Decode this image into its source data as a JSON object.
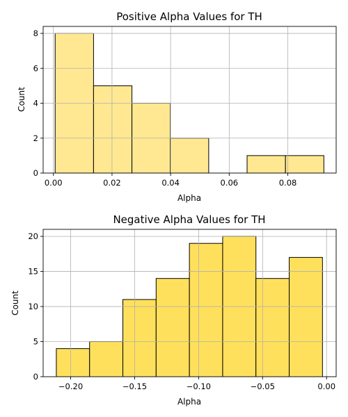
{
  "chart_data": [
    {
      "type": "bar",
      "title": "Positive Alpha Values for TH",
      "xlabel": "Alpha",
      "ylabel": "Count",
      "xlim": [
        -0.0035,
        0.0965
      ],
      "ylim": [
        0,
        8.4
      ],
      "xticks": [
        0.0,
        0.02,
        0.04,
        0.06,
        0.08
      ],
      "xtick_labels": [
        "0.00",
        "0.02",
        "0.04",
        "0.06",
        "0.08"
      ],
      "yticks": [
        0,
        2,
        4,
        6,
        8
      ],
      "ytick_labels": [
        "0",
        "2",
        "4",
        "6",
        "8"
      ],
      "grid": true,
      "color": "#ffe891",
      "bins": [
        {
          "x0": 0.0006,
          "x1": 0.0137,
          "value": 8
        },
        {
          "x0": 0.0137,
          "x1": 0.0268,
          "value": 5
        },
        {
          "x0": 0.0268,
          "x1": 0.0399,
          "value": 4
        },
        {
          "x0": 0.0399,
          "x1": 0.053,
          "value": 2
        },
        {
          "x0": 0.053,
          "x1": 0.0661,
          "value": 0
        },
        {
          "x0": 0.0661,
          "x1": 0.0792,
          "value": 1
        },
        {
          "x0": 0.0792,
          "x1": 0.0923,
          "value": 1
        }
      ]
    },
    {
      "type": "bar",
      "title": "Negative Alpha Values for TH",
      "xlabel": "Alpha",
      "ylabel": "Count",
      "xlim": [
        -0.2215,
        0.0075
      ],
      "ylim": [
        0,
        21
      ],
      "xticks": [
        -0.2,
        -0.15,
        -0.1,
        -0.05,
        0.0
      ],
      "xtick_labels": [
        "−0.20",
        "−0.15",
        "−0.10",
        "−0.05",
        "0.00"
      ],
      "yticks": [
        0,
        5,
        10,
        15,
        20
      ],
      "ytick_labels": [
        "0",
        "5",
        "10",
        "15",
        "20"
      ],
      "grid": true,
      "color": "#ffe05c",
      "bins": [
        {
          "x0": -0.2112,
          "x1": -0.1852,
          "value": 4
        },
        {
          "x0": -0.1852,
          "x1": -0.1592,
          "value": 5
        },
        {
          "x0": -0.1592,
          "x1": -0.1332,
          "value": 11
        },
        {
          "x0": -0.1332,
          "x1": -0.1072,
          "value": 14
        },
        {
          "x0": -0.1072,
          "x1": -0.0812,
          "value": 19
        },
        {
          "x0": -0.0812,
          "x1": -0.0552,
          "value": 20
        },
        {
          "x0": -0.0552,
          "x1": -0.0292,
          "value": 14
        },
        {
          "x0": -0.0292,
          "x1": -0.0032,
          "value": 17
        }
      ]
    }
  ]
}
